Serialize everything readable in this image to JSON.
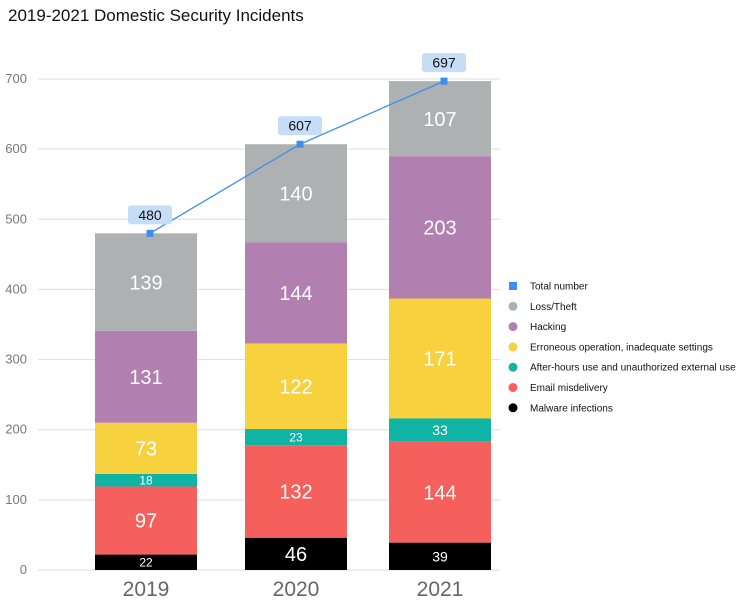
{
  "chart_data": {
    "type": "bar",
    "stacked": true,
    "title": "2019-2021 Domestic Security Incidents",
    "categories": [
      "2019",
      "2020",
      "2021"
    ],
    "ylim": [
      0,
      700
    ],
    "yticks": [
      "0",
      "100",
      "200",
      "300",
      "400",
      "500",
      "600",
      "700"
    ],
    "grid": true,
    "legend_position": "right",
    "series": [
      {
        "name": "Malware infections",
        "color": "#000000",
        "label_color": "#ffffff",
        "values": [
          22,
          46,
          39
        ]
      },
      {
        "name": "Email misdelivery",
        "color": "#f5605c",
        "label_color": "#ffffff",
        "values": [
          97,
          132,
          144
        ]
      },
      {
        "name": "After-hours use and unauthorized external use",
        "color": "#10b4a4",
        "label_color": "#ffffff",
        "values": [
          18,
          23,
          33
        ]
      },
      {
        "name": "Erroneous operation, inadequate settings",
        "color": "#f7d23e",
        "label_color": "#ffffff",
        "values": [
          73,
          122,
          171
        ]
      },
      {
        "name": "Hacking",
        "color": "#b17fb0",
        "label_color": "#ffffff",
        "values": [
          131,
          144,
          203
        ]
      },
      {
        "name": "Loss/Theft",
        "color": "#aeb1b1",
        "label_color": "#ffffff",
        "values": [
          139,
          140,
          107
        ]
      }
    ],
    "line_series": {
      "name": "Total number",
      "color": "#3d8ef0",
      "values": [
        480,
        607,
        697
      ],
      "label_bg": "#c6ddf7"
    },
    "legend_order": [
      "Total number",
      "Loss/Theft",
      "Hacking",
      "Erroneous operation, inadequate settings",
      "After-hours use and unauthorized external use",
      "Email misdelivery",
      "Malware infections"
    ]
  }
}
